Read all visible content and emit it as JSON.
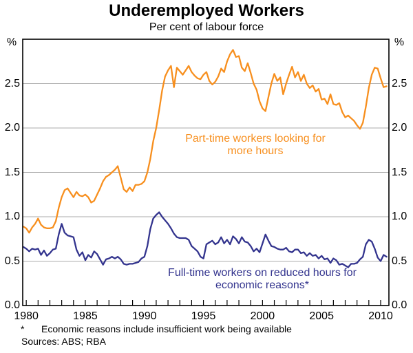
{
  "header": {
    "title": "Underemployed Workers",
    "subtitle": "Per cent of labour force",
    "unit_left": "%",
    "unit_right": "%"
  },
  "footnotes": {
    "marker": "*",
    "note": "Economic reasons include insufficient work being available",
    "sources": "Sources: ABS; RBA"
  },
  "colors": {
    "orange": "#F78F1E",
    "navy": "#33348E",
    "grid": "#ABABAB",
    "frame": "#000000"
  },
  "chart_data": {
    "type": "line",
    "title": "Underemployed Workers",
    "subtitle": "Per cent of labour force",
    "ylabel": "%",
    "grid": "horizontal",
    "legend_position": "annotations-inside-plot",
    "xlim": [
      1979.7,
      2010.7
    ],
    "ylim": [
      0,
      3
    ],
    "yticks": [
      0.0,
      0.5,
      1.0,
      1.5,
      2.0,
      2.5
    ],
    "ytick_labels": [
      "0.0",
      "0.5",
      "1.0",
      "1.5",
      "2.0",
      "2.5"
    ],
    "xticks_labeled": [
      1980,
      1985,
      1990,
      1995,
      2000,
      2005,
      2010
    ],
    "xticks_minor_every_years": 1,
    "x_start": 1979.75,
    "x_step": 0.25,
    "series": [
      {
        "name": "Part-time workers looking for more hours",
        "annotation_lines": [
          "Part-time workers looking for",
          "more hours"
        ],
        "color": "#F78F1E",
        "values": [
          0.89,
          0.87,
          0.82,
          0.88,
          0.92,
          0.98,
          0.91,
          0.88,
          0.87,
          0.87,
          0.88,
          0.95,
          1.1,
          1.22,
          1.3,
          1.32,
          1.27,
          1.22,
          1.28,
          1.24,
          1.23,
          1.25,
          1.22,
          1.16,
          1.18,
          1.25,
          1.32,
          1.4,
          1.45,
          1.47,
          1.5,
          1.53,
          1.57,
          1.44,
          1.31,
          1.28,
          1.33,
          1.29,
          1.36,
          1.36,
          1.37,
          1.4,
          1.5,
          1.65,
          1.85,
          2.0,
          2.2,
          2.42,
          2.58,
          2.65,
          2.7,
          2.46,
          2.68,
          2.64,
          2.6,
          2.65,
          2.7,
          2.63,
          2.59,
          2.56,
          2.55,
          2.6,
          2.63,
          2.53,
          2.49,
          2.52,
          2.58,
          2.67,
          2.63,
          2.75,
          2.83,
          2.88,
          2.8,
          2.81,
          2.68,
          2.64,
          2.73,
          2.62,
          2.5,
          2.43,
          2.3,
          2.22,
          2.19,
          2.35,
          2.5,
          2.61,
          2.53,
          2.57,
          2.38,
          2.5,
          2.6,
          2.69,
          2.57,
          2.63,
          2.53,
          2.6,
          2.5,
          2.45,
          2.48,
          2.41,
          2.44,
          2.32,
          2.33,
          2.27,
          2.38,
          2.27,
          2.26,
          2.28,
          2.18,
          2.12,
          2.14,
          2.11,
          2.08,
          2.03,
          1.99,
          2.06,
          2.24,
          2.45,
          2.6,
          2.68,
          2.67,
          2.56,
          2.46,
          2.47
        ]
      },
      {
        "name": "Full-time workers on reduced hours for economic reasons*",
        "annotation_lines": [
          "Full-time workers on reduced hours for",
          "economic reasons*"
        ],
        "color": "#33348E",
        "values": [
          0.66,
          0.64,
          0.61,
          0.64,
          0.63,
          0.64,
          0.57,
          0.62,
          0.56,
          0.59,
          0.63,
          0.64,
          0.8,
          0.92,
          0.82,
          0.79,
          0.78,
          0.77,
          0.63,
          0.56,
          0.6,
          0.51,
          0.57,
          0.54,
          0.61,
          0.58,
          0.52,
          0.46,
          0.52,
          0.53,
          0.55,
          0.53,
          0.55,
          0.52,
          0.47,
          0.46,
          0.47,
          0.47,
          0.48,
          0.49,
          0.53,
          0.55,
          0.67,
          0.86,
          0.98,
          1.02,
          1.05,
          1.0,
          0.96,
          0.92,
          0.87,
          0.81,
          0.77,
          0.76,
          0.76,
          0.76,
          0.74,
          0.67,
          0.64,
          0.61,
          0.55,
          0.53,
          0.69,
          0.71,
          0.73,
          0.69,
          0.71,
          0.77,
          0.7,
          0.74,
          0.69,
          0.78,
          0.75,
          0.7,
          0.77,
          0.72,
          0.71,
          0.67,
          0.61,
          0.64,
          0.6,
          0.7,
          0.8,
          0.73,
          0.67,
          0.66,
          0.64,
          0.63,
          0.63,
          0.65,
          0.61,
          0.6,
          0.63,
          0.63,
          0.59,
          0.6,
          0.56,
          0.59,
          0.56,
          0.57,
          0.53,
          0.56,
          0.52,
          0.53,
          0.48,
          0.53,
          0.51,
          0.46,
          0.47,
          0.45,
          0.43,
          0.47,
          0.47,
          0.48,
          0.52,
          0.55,
          0.69,
          0.74,
          0.72,
          0.64,
          0.54,
          0.5,
          0.57,
          0.55
        ]
      }
    ]
  }
}
